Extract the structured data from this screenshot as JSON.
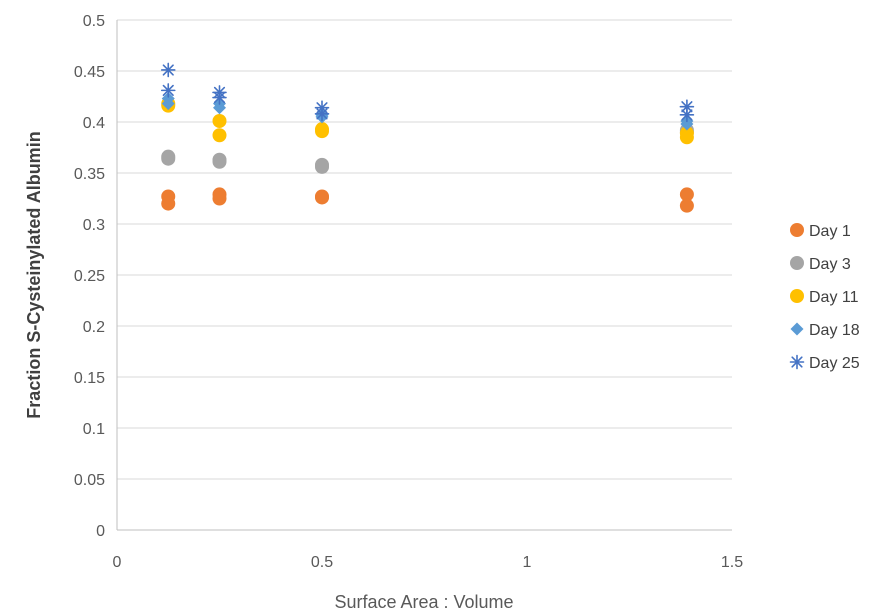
{
  "chart_data": {
    "type": "scatter",
    "title": "",
    "xlabel": "Surface Area : Volume",
    "ylabel": "Fraction S-Cysteinylated Albumin",
    "xlim": [
      0,
      1.5
    ],
    "ylim": [
      0,
      0.5
    ],
    "x_ticks": [
      0,
      0.5,
      1,
      1.5
    ],
    "x_tick_labels": [
      "0",
      "0.5",
      "1",
      "1.5"
    ],
    "y_ticks": [
      0,
      0.05,
      0.1,
      0.15,
      0.2,
      0.25,
      0.3,
      0.35,
      0.4,
      0.45,
      0.5
    ],
    "y_tick_labels": [
      "0",
      "0.05",
      "0.1",
      "0.15",
      "0.2",
      "0.25",
      "0.3",
      "0.35",
      "0.4",
      "0.45",
      "0.5"
    ],
    "grid": "horizontal",
    "legend_position": "right",
    "series": [
      {
        "name": "Day 1",
        "marker": "circle",
        "color": "#ED7D31",
        "points": [
          [
            0.125,
            0.327
          ],
          [
            0.125,
            0.32
          ],
          [
            0.25,
            0.329
          ],
          [
            0.25,
            0.325
          ],
          [
            0.5,
            0.327
          ],
          [
            0.5,
            0.326
          ],
          [
            1.39,
            0.329
          ],
          [
            1.39,
            0.318
          ]
        ]
      },
      {
        "name": "Day 3",
        "marker": "circle",
        "color": "#A5A5A5",
        "points": [
          [
            0.125,
            0.366
          ],
          [
            0.125,
            0.364
          ],
          [
            0.25,
            0.363
          ],
          [
            0.25,
            0.361
          ],
          [
            0.5,
            0.358
          ],
          [
            0.5,
            0.356
          ],
          [
            1.39,
            0.392
          ],
          [
            1.39,
            0.39
          ]
        ]
      },
      {
        "name": "Day 11",
        "marker": "circle",
        "color": "#FFC000",
        "points": [
          [
            0.125,
            0.418
          ],
          [
            0.125,
            0.416
          ],
          [
            0.25,
            0.401
          ],
          [
            0.25,
            0.387
          ],
          [
            0.5,
            0.393
          ],
          [
            0.5,
            0.391
          ],
          [
            1.39,
            0.389
          ],
          [
            1.39,
            0.385
          ]
        ]
      },
      {
        "name": "Day 18",
        "marker": "diamond",
        "color": "#5B9BD5",
        "points": [
          [
            0.125,
            0.423
          ],
          [
            0.125,
            0.418
          ],
          [
            0.25,
            0.418
          ],
          [
            0.25,
            0.414
          ],
          [
            0.5,
            0.407
          ],
          [
            0.5,
            0.405
          ],
          [
            1.39,
            0.401
          ],
          [
            1.39,
            0.398
          ]
        ]
      },
      {
        "name": "Day 25",
        "marker": "star",
        "color": "#4472C4",
        "points": [
          [
            0.125,
            0.451
          ],
          [
            0.125,
            0.431
          ],
          [
            0.25,
            0.429
          ],
          [
            0.25,
            0.424
          ],
          [
            0.5,
            0.414
          ],
          [
            0.5,
            0.408
          ],
          [
            1.39,
            0.415
          ],
          [
            1.39,
            0.407
          ]
        ]
      }
    ]
  }
}
